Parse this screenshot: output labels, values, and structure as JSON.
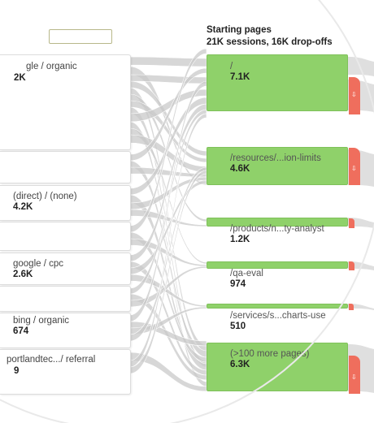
{
  "header": {
    "title": "Starting pages",
    "summary": "21K sessions, 16K drop-offs"
  },
  "search": {
    "value": ""
  },
  "sources": [
    {
      "label": "gle / organic",
      "value": "2K"
    },
    {
      "label": "",
      "value": ""
    },
    {
      "label": "(direct) / (none)",
      "value": "4.2K"
    },
    {
      "label": "",
      "value": ""
    },
    {
      "label": "google / cpc",
      "value": "2.6K"
    },
    {
      "label": "",
      "value": ""
    },
    {
      "label": "bing / organic",
      "value": "674"
    },
    {
      "label": "portlandtec.../ referral",
      "value": "9"
    }
  ],
  "pages": [
    {
      "label": "/",
      "value": "7.1K"
    },
    {
      "label": "/resources/...ion-limits",
      "value": "4.6K"
    },
    {
      "label": "/products/n...ty-analyst",
      "value": "1.2K"
    },
    {
      "label": "/qa-eval",
      "value": "974"
    },
    {
      "label": "/services/s...charts-use",
      "value": "510"
    },
    {
      "label": "(>100 more pages)",
      "value": "6.3K"
    }
  ],
  "colors": {
    "page_fill": "#8fd16a",
    "dropoff": "#ef6e5d",
    "flow": "#c9c9c9"
  },
  "icons": {
    "dropoff": "down-arrow-icon"
  }
}
